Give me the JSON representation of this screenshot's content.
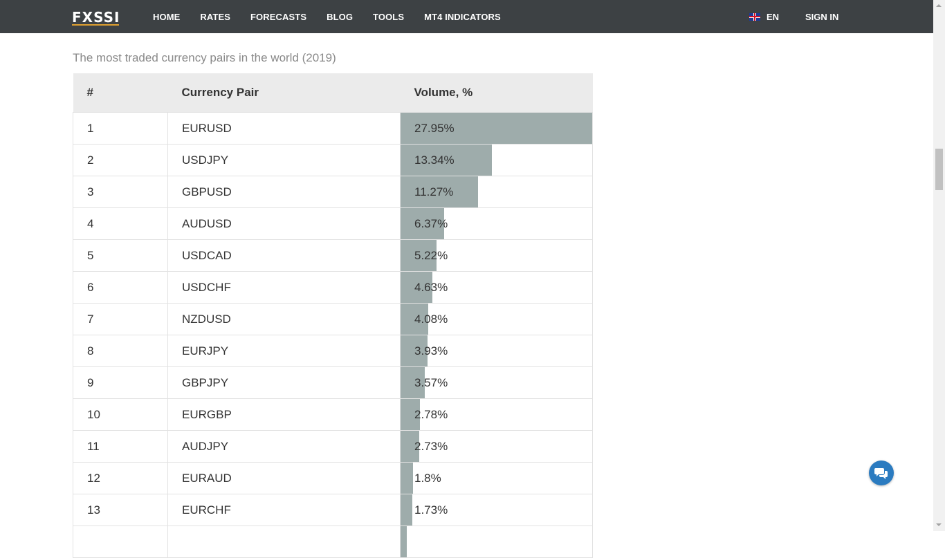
{
  "header": {
    "logo": "FXSSI",
    "nav": [
      "HOME",
      "RATES",
      "FORECASTS",
      "BLOG",
      "TOOLS",
      "MT4 INDICATORS"
    ],
    "language": "EN",
    "signin": "SIGN IN"
  },
  "main": {
    "caption": "The most traded currency pairs in the world (2019)",
    "table": {
      "headers": [
        "#",
        "Currency Pair",
        "Volume, %"
      ],
      "rows": [
        {
          "rank": "1",
          "pair": "EURUSD",
          "volume": "27.95%",
          "value": 27.95
        },
        {
          "rank": "2",
          "pair": "USDJPY",
          "volume": "13.34%",
          "value": 13.34
        },
        {
          "rank": "3",
          "pair": "GBPUSD",
          "volume": "11.27%",
          "value": 11.27
        },
        {
          "rank": "4",
          "pair": "AUDUSD",
          "volume": "6.37%",
          "value": 6.37
        },
        {
          "rank": "5",
          "pair": "USDCAD",
          "volume": "5.22%",
          "value": 5.22
        },
        {
          "rank": "6",
          "pair": "USDCHF",
          "volume": "4.63%",
          "value": 4.63
        },
        {
          "rank": "7",
          "pair": "NZDUSD",
          "volume": "4.08%",
          "value": 4.08
        },
        {
          "rank": "8",
          "pair": "EURJPY",
          "volume": "3.93%",
          "value": 3.93
        },
        {
          "rank": "9",
          "pair": "GBPJPY",
          "volume": "3.57%",
          "value": 3.57
        },
        {
          "rank": "10",
          "pair": "EURGBP",
          "volume": "2.78%",
          "value": 2.78
        },
        {
          "rank": "11",
          "pair": "AUDJPY",
          "volume": "2.73%",
          "value": 2.73
        },
        {
          "rank": "12",
          "pair": "EURAUD",
          "volume": "1.8%",
          "value": 1.8
        },
        {
          "rank": "13",
          "pair": "EURCHF",
          "volume": "1.73%",
          "value": 1.73
        },
        {
          "rank": "",
          "pair": "",
          "volume": "",
          "value": 0.9
        }
      ]
    }
  },
  "icons": {
    "flag": "uk-flag-icon",
    "chat": "chat-bubble-icon"
  },
  "colors": {
    "header_bg": "#3d4144",
    "bar": "#9eacab",
    "table_header_bg": "#ebebeb",
    "chat_button": "#2b7bc0"
  }
}
